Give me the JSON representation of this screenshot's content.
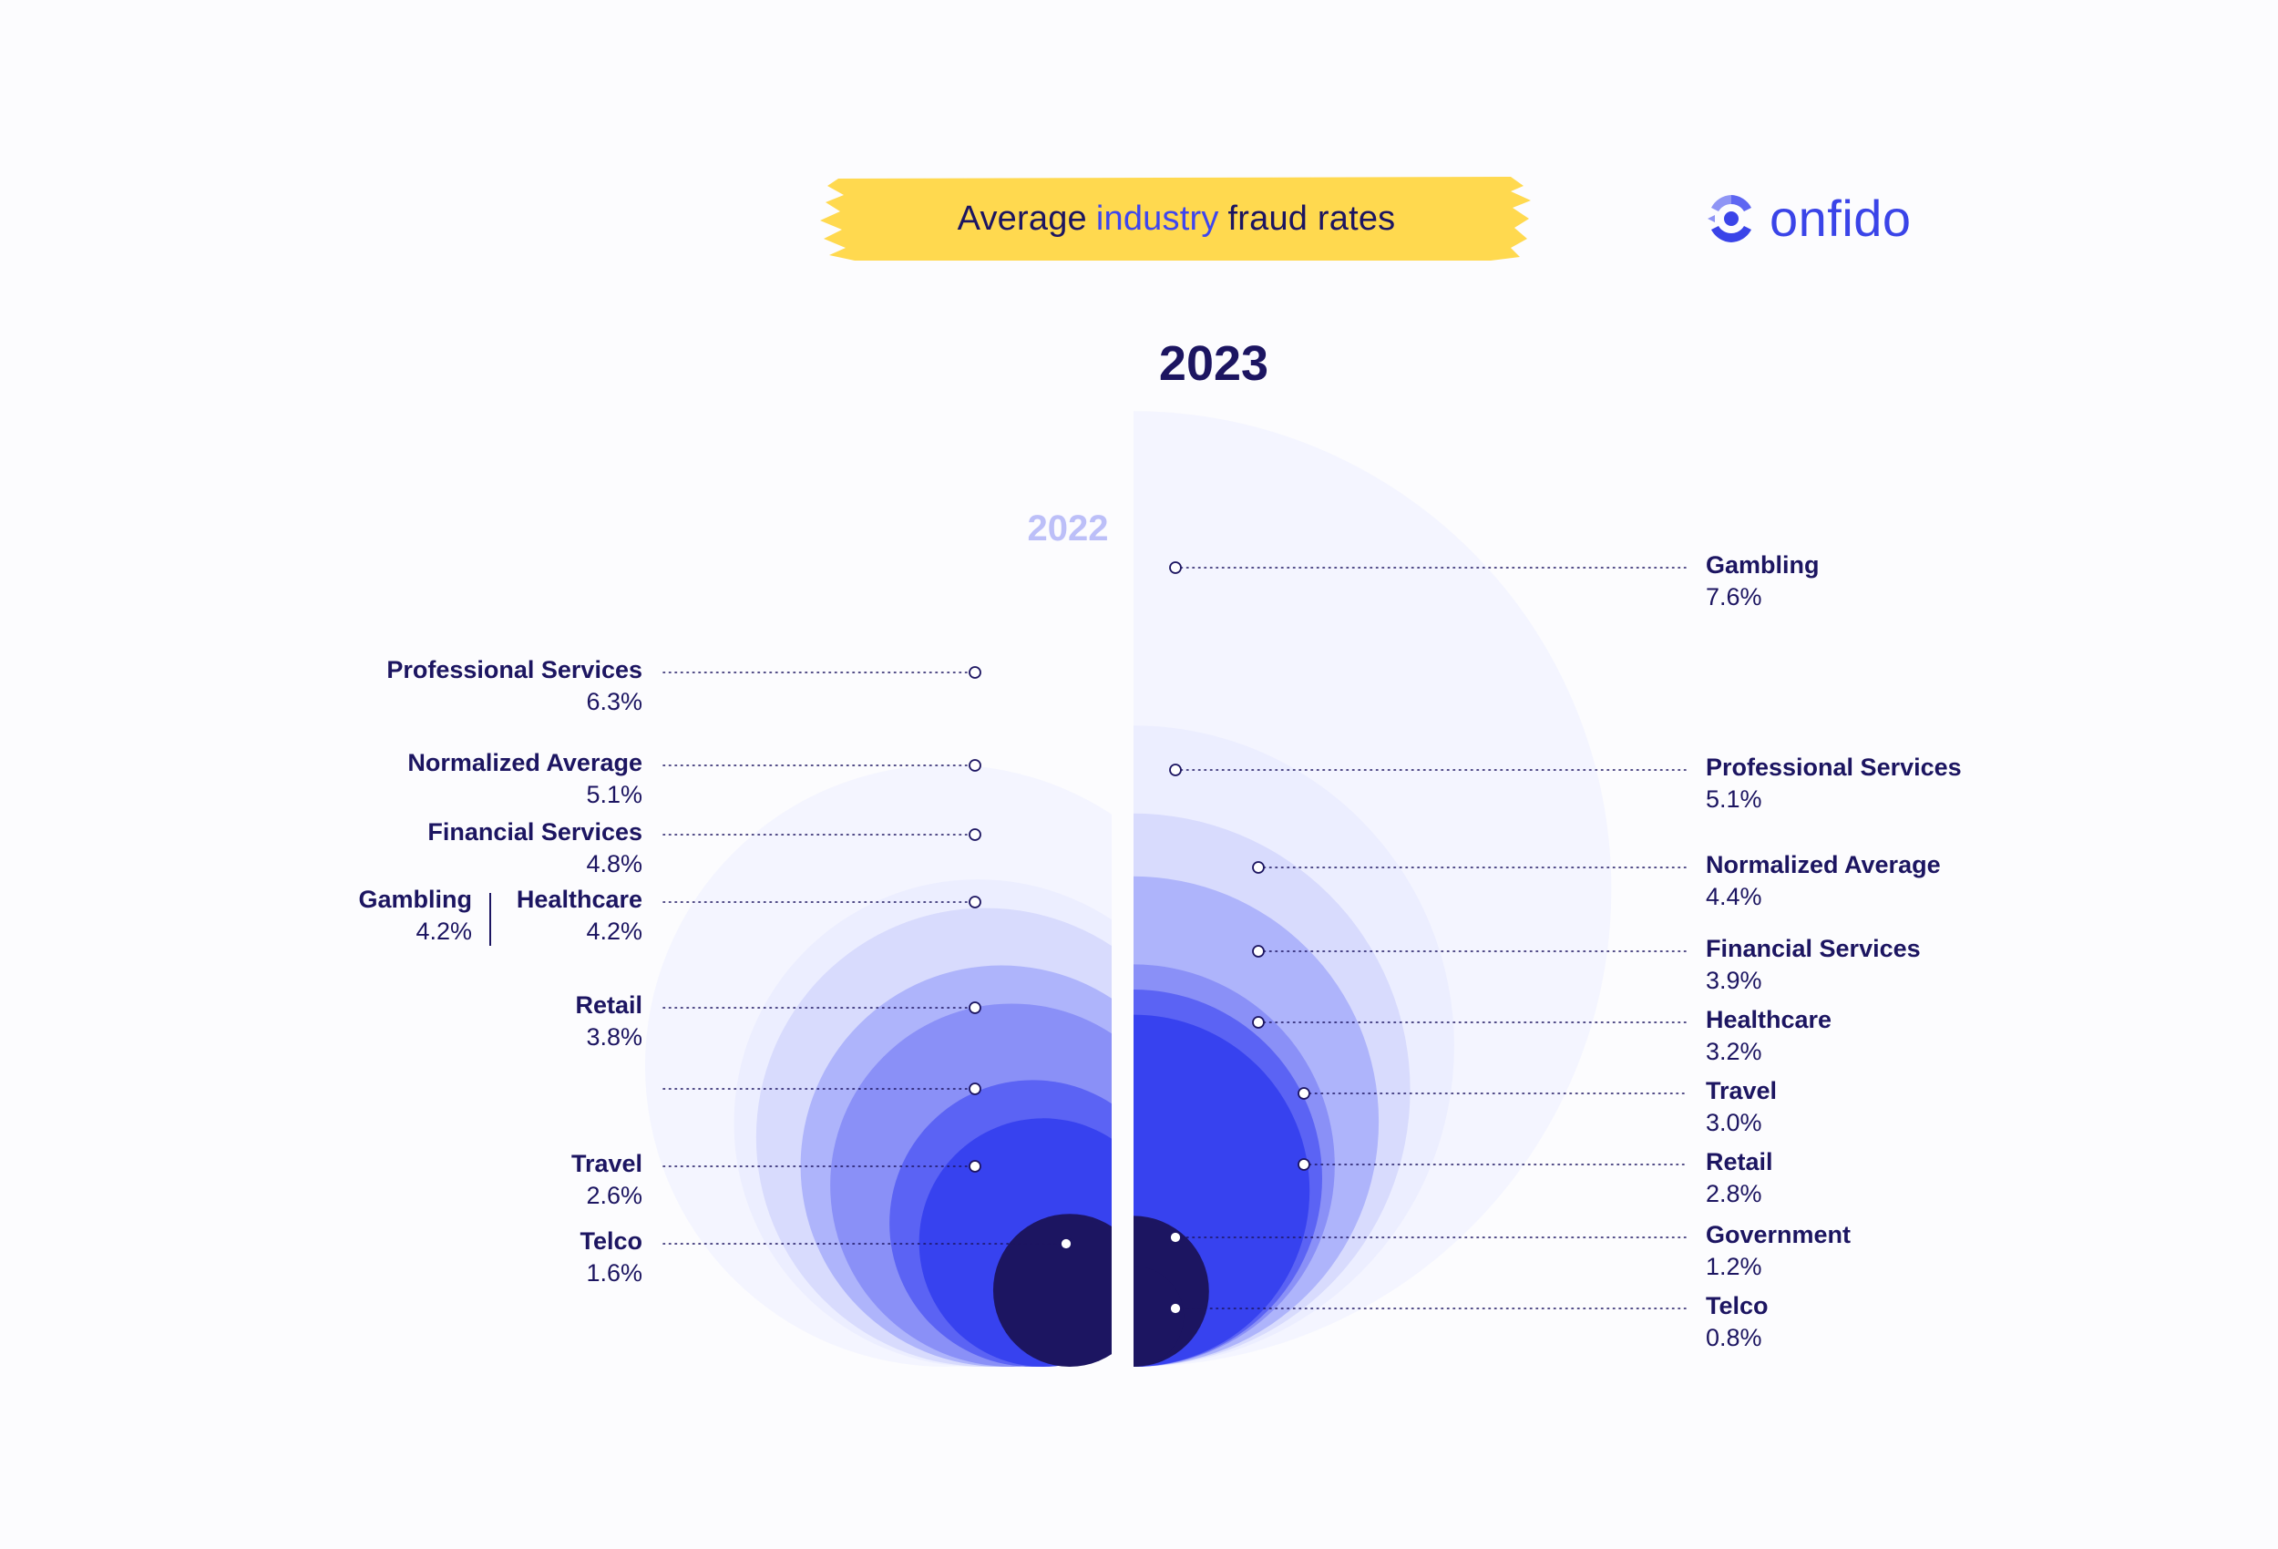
{
  "header": {
    "title_before": "Average",
    "title_highlight": "industry",
    "title_after": "fraud rates",
    "highlight_color": "#ffd94f",
    "accent_color": "#3e46ee",
    "logo_text": "onfido",
    "logo_icon": "onfido-logo-icon"
  },
  "colors": {
    "text": "#1c1561",
    "ring_palette": [
      "#f4f5ff",
      "#eceeff",
      "#d8dbfd",
      "#aeb4fb",
      "#8a90f7",
      "#5b63f4",
      "#3742ef",
      "#1c1561"
    ]
  },
  "chart_data": {
    "type": "nested-semicircle",
    "title": "Average industry fraud rates",
    "unit": "%",
    "series": [
      {
        "name": "2022",
        "side": "left",
        "points": [
          {
            "label": "Professional Services",
            "value": 6.3,
            "display": "6.3%"
          },
          {
            "label": "Normalized Average",
            "value": 5.1,
            "display": "5.1%"
          },
          {
            "label": "Financial Services",
            "value": 4.8,
            "display": "4.8%"
          },
          {
            "label": "Gambling",
            "value": 4.2,
            "display": "4.2%"
          },
          {
            "label": "Healthcare",
            "value": 4.2,
            "display": "4.2%"
          },
          {
            "label": "Retail",
            "value": 3.8,
            "display": "3.8%"
          },
          {
            "label": "",
            "value": 3.0,
            "display": ""
          },
          {
            "label": "Travel",
            "value": 2.6,
            "display": "2.6%"
          },
          {
            "label": "Telco",
            "value": 1.6,
            "display": "1.6%"
          }
        ]
      },
      {
        "name": "2023",
        "side": "right",
        "points": [
          {
            "label": "Gambling",
            "value": 7.6,
            "display": "7.6%"
          },
          {
            "label": "Professional Services",
            "value": 5.1,
            "display": "5.1%"
          },
          {
            "label": "Normalized Average",
            "value": 4.4,
            "display": "4.4%"
          },
          {
            "label": "Financial Services",
            "value": 3.9,
            "display": "3.9%"
          },
          {
            "label": "Healthcare",
            "value": 3.2,
            "display": "3.2%"
          },
          {
            "label": "Travel",
            "value": 3.0,
            "display": "3.0%"
          },
          {
            "label": "Retail",
            "value": 2.8,
            "display": "2.8%"
          },
          {
            "label": "Government",
            "value": 1.2,
            "display": "1.2%"
          },
          {
            "label": "Telco",
            "value": 0.8,
            "display": "0.8%"
          }
        ]
      }
    ]
  }
}
